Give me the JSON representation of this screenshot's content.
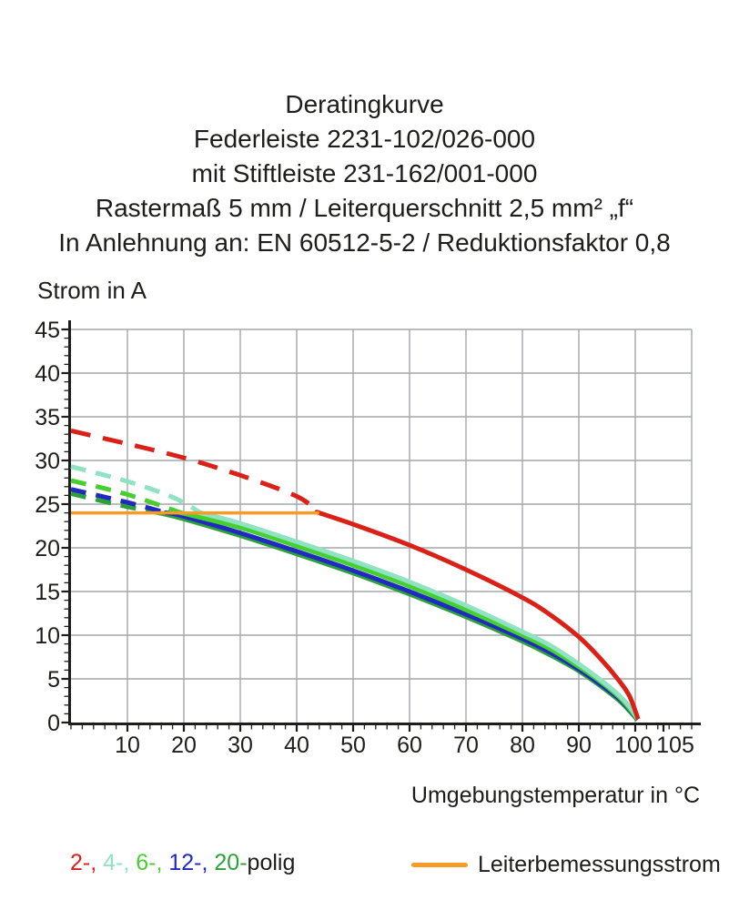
{
  "title": {
    "lines": [
      "Deratingkurve",
      "Federleiste 2231-102/026-000",
      "mit Stiftleiste 231-162/001-000",
      "Rastermaß 5 mm / Leiterquerschnitt 2,5 mm² „f“",
      "In Anlehnung an: EN 60512-5-2 / Reduktionsfaktor 0,8"
    ]
  },
  "chart_data": {
    "type": "line",
    "title": "Deratingkurve",
    "xlabel": "Umgebungstemperatur in °C",
    "ylabel": "Strom in A",
    "xlim": [
      0,
      110
    ],
    "ylim": [
      0,
      45
    ],
    "x_ticks": [
      10,
      20,
      30,
      40,
      50,
      60,
      70,
      80,
      90,
      100,
      105
    ],
    "x_gridlines": [
      10,
      20,
      30,
      40,
      50,
      60,
      70,
      80,
      90,
      100,
      110
    ],
    "y_ticks": [
      0,
      5,
      10,
      15,
      20,
      25,
      30,
      35,
      40,
      45
    ],
    "x_minor_step": 2,
    "y_minor_step": 1,
    "grid": true,
    "grid_color": "#a3a9ab",
    "axis_color": "#1d1d1b",
    "note": "curves dashed above rated current line, solid below; all poles drop to 0 A at ~100 °C",
    "series": [
      {
        "name": "20-polig",
        "color": "#2da03a",
        "dash_until": 16,
        "dash": "17 11",
        "points": [
          [
            0,
            26.2
          ],
          [
            10,
            24.7
          ],
          [
            16,
            23.95
          ],
          [
            20,
            23.3
          ],
          [
            30,
            21.4
          ],
          [
            40,
            19.3
          ],
          [
            50,
            17.1
          ],
          [
            60,
            14.7
          ],
          [
            70,
            12.1
          ],
          [
            80,
            9.3
          ],
          [
            85,
            7.7
          ],
          [
            90,
            5.9
          ],
          [
            94,
            4.1
          ],
          [
            97,
            2.6
          ],
          [
            99,
            1.3
          ],
          [
            100.4,
            0.3
          ]
        ]
      },
      {
        "name": "12-polig",
        "color": "#2029c0",
        "dash_until": 17,
        "dash": "17 11",
        "points": [
          [
            0,
            26.7
          ],
          [
            10,
            25.2
          ],
          [
            17,
            24.0
          ],
          [
            20,
            23.6
          ],
          [
            30,
            21.7
          ],
          [
            40,
            19.6
          ],
          [
            50,
            17.4
          ],
          [
            60,
            15.0
          ],
          [
            70,
            12.4
          ],
          [
            80,
            9.6
          ],
          [
            85,
            8.0
          ],
          [
            90,
            6.1
          ],
          [
            94,
            4.3
          ],
          [
            97,
            2.8
          ],
          [
            99,
            1.5
          ],
          [
            100.4,
            0.35
          ]
        ]
      },
      {
        "name": "6-polig",
        "color": "#46cf2e",
        "dash_until": 19.5,
        "dash": "17 11",
        "points": [
          [
            0,
            27.7
          ],
          [
            10,
            26.1
          ],
          [
            19.5,
            24.0
          ],
          [
            30,
            22.3
          ],
          [
            40,
            20.2
          ],
          [
            50,
            18.0
          ],
          [
            60,
            15.6
          ],
          [
            70,
            12.9
          ],
          [
            80,
            10.0
          ],
          [
            85,
            8.4
          ],
          [
            90,
            6.4
          ],
          [
            94,
            4.6
          ],
          [
            97,
            3.0
          ],
          [
            99,
            1.6
          ],
          [
            100.4,
            0.4
          ]
        ]
      },
      {
        "name": "4-polig",
        "color": "#8fe2c2",
        "dash_until": 23,
        "dash": "17 11",
        "points": [
          [
            0,
            29.3
          ],
          [
            10,
            27.6
          ],
          [
            18,
            25.8
          ],
          [
            23,
            24.0
          ],
          [
            30,
            22.8
          ],
          [
            40,
            20.7
          ],
          [
            50,
            18.5
          ],
          [
            60,
            16.1
          ],
          [
            70,
            13.4
          ],
          [
            80,
            10.4
          ],
          [
            85,
            8.8
          ],
          [
            90,
            6.7
          ],
          [
            94,
            4.8
          ],
          [
            97,
            3.2
          ],
          [
            99,
            1.8
          ],
          [
            100.4,
            0.45
          ]
        ]
      },
      {
        "name": "2-polig",
        "color": "#da2118",
        "dash_until": 44,
        "dash": "22 14",
        "points": [
          [
            0,
            33.4
          ],
          [
            10,
            31.9
          ],
          [
            20,
            30.3
          ],
          [
            30,
            28.3
          ],
          [
            40,
            25.9
          ],
          [
            44,
            24.0
          ],
          [
            50,
            22.7
          ],
          [
            60,
            20.3
          ],
          [
            70,
            17.5
          ],
          [
            80,
            14.3
          ],
          [
            85,
            12.3
          ],
          [
            90,
            9.8
          ],
          [
            94,
            7.2
          ],
          [
            97,
            4.9
          ],
          [
            99,
            3.0
          ],
          [
            100.5,
            0.4
          ]
        ]
      }
    ],
    "reference_line": {
      "label": "Leiterbemessungsstrom",
      "value": 24,
      "x_start": 0,
      "x_end": 44,
      "color": "#f59b28"
    }
  },
  "legend": {
    "items": [
      {
        "text": "2-, ",
        "color": "#da2118"
      },
      {
        "text": "4-, ",
        "color": "#8fe2c2"
      },
      {
        "text": "6-, ",
        "color": "#46cf2e"
      },
      {
        "text": "12-, ",
        "color": "#2029c0"
      },
      {
        "text": "20-",
        "color": "#2da03a"
      },
      {
        "text": "polig",
        "color": "#1d1d1b"
      }
    ],
    "reference_label": "Leiterbemessungsstrom"
  }
}
